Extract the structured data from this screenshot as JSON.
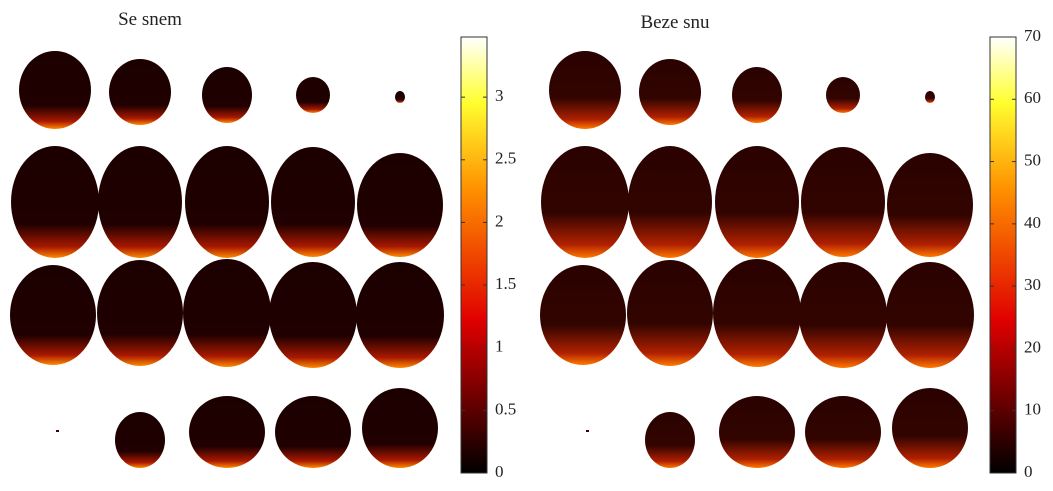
{
  "panels": [
    {
      "title": "Se snem",
      "colorbar": {
        "lim": [
          0,
          3.48
        ],
        "ticks": [
          0,
          0.5,
          1,
          1.5,
          2,
          2.5,
          3
        ]
      }
    },
    {
      "title": "Beze snu",
      "colorbar": {
        "lim": [
          0,
          70
        ],
        "ticks": [
          0,
          10,
          20,
          30,
          40,
          50,
          60,
          70
        ]
      }
    }
  ]
}
